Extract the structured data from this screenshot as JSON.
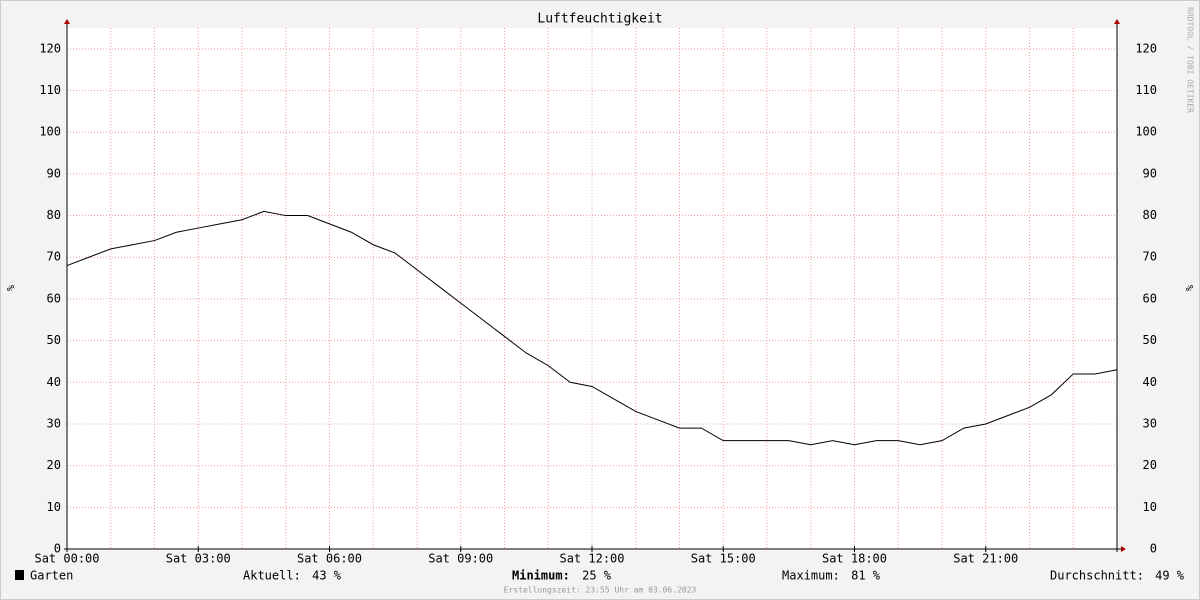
{
  "chart_data": {
    "type": "line",
    "title": "Luftfeuchtigkeit",
    "y_label": "%",
    "y2_label": "%",
    "watermark": "RRDTOOL / TOBI OETIKER",
    "footer": "Erstellungszeit: 23:55 Uhr am 03.06.2023",
    "xlim": [
      0,
      24
    ],
    "xticks": [
      {
        "value": 0,
        "label": "Sat 00:00"
      },
      {
        "value": 3,
        "label": "Sat 03:00"
      },
      {
        "value": 6,
        "label": "Sat 06:00"
      },
      {
        "value": 9,
        "label": "Sat 09:00"
      },
      {
        "value": 12,
        "label": "Sat 12:00"
      },
      {
        "value": 15,
        "label": "Sat 15:00"
      },
      {
        "value": 18,
        "label": "Sat 18:00"
      },
      {
        "value": 21,
        "label": "Sat 21:00"
      }
    ],
    "xgrid": [
      0,
      1,
      2,
      3,
      4,
      5,
      6,
      7,
      8,
      9,
      10,
      11,
      12,
      13,
      14,
      15,
      16,
      17,
      18,
      19,
      20,
      21,
      22,
      23,
      24
    ],
    "ylim": [
      0,
      125
    ],
    "yticks": [
      0,
      10,
      20,
      30,
      40,
      50,
      60,
      70,
      80,
      90,
      100,
      110,
      120
    ],
    "grid": true,
    "x": [
      0,
      0.5,
      1,
      1.5,
      2,
      2.5,
      3,
      3.5,
      4,
      4.5,
      5,
      5.5,
      6,
      6.5,
      7,
      7.5,
      8,
      8.5,
      9,
      9.5,
      10,
      10.5,
      11,
      11.5,
      12,
      12.5,
      13,
      13.5,
      14,
      14.5,
      15,
      15.5,
      16,
      16.5,
      17,
      17.5,
      18,
      18.5,
      19,
      19.5,
      20,
      20.5,
      21,
      21.5,
      22,
      22.5,
      23,
      23.5,
      24
    ],
    "series": [
      {
        "name": "Garten",
        "color": "#000000",
        "values": [
          68,
          70,
          72,
          73,
          74,
          76,
          77,
          78,
          79,
          81,
          80,
          80,
          78,
          76,
          73,
          71,
          67,
          63,
          59,
          55,
          51,
          47,
          44,
          40,
          39,
          36,
          33,
          31,
          29,
          29,
          26,
          26,
          26,
          26,
          25,
          26,
          25,
          26,
          26,
          25,
          26,
          29,
          30,
          32,
          34,
          37,
          42,
          42,
          43
        ]
      }
    ],
    "stats": [
      {
        "label": "Aktuell:",
        "value": 43,
        "value_label": "43 %"
      },
      {
        "label": "Minimum:",
        "value": 25,
        "value_label": "25 %"
      },
      {
        "label": "Maximum:",
        "value": 81,
        "value_label": "81 %"
      },
      {
        "label": "Durchschnitt:",
        "value": 49,
        "value_label": "49 %"
      }
    ]
  }
}
